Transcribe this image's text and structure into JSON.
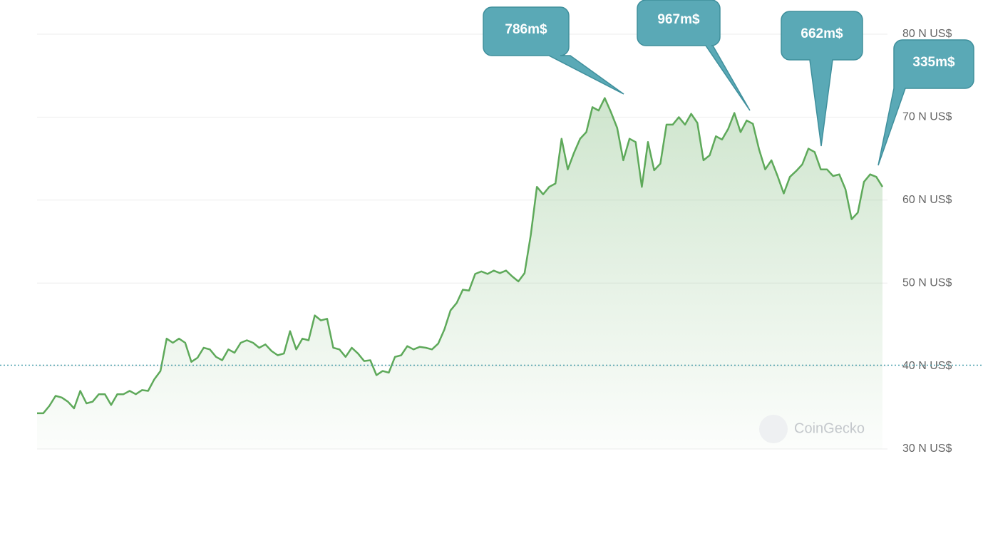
{
  "chart_data": {
    "type": "line",
    "values": [
      34.3,
      34.3,
      35.2,
      36.4,
      36.2,
      35.7,
      34.9,
      37.0,
      35.5,
      35.7,
      36.6,
      36.6,
      35.3,
      36.6,
      36.6,
      37.0,
      36.6,
      37.1,
      37.0,
      38.4,
      39.4,
      43.3,
      42.8,
      43.3,
      42.8,
      40.5,
      41.0,
      42.2,
      42.0,
      41.1,
      40.7,
      42.0,
      41.6,
      42.8,
      43.1,
      42.8,
      42.2,
      42.6,
      41.8,
      41.3,
      41.5,
      44.2,
      42.0,
      43.3,
      43.1,
      46.1,
      45.5,
      45.7,
      42.2,
      42.0,
      41.1,
      42.2,
      41.5,
      40.6,
      40.7,
      38.9,
      39.4,
      39.2,
      41.1,
      41.3,
      42.4,
      42.0,
      42.3,
      42.2,
      42.0,
      42.7,
      44.4,
      46.7,
      47.6,
      49.2,
      49.1,
      51.1,
      51.4,
      51.1,
      51.5,
      51.2,
      51.5,
      50.8,
      50.2,
      51.2,
      55.8,
      61.6,
      60.7,
      61.6,
      62.0,
      67.4,
      63.7,
      65.7,
      67.4,
      68.2,
      71.2,
      70.8,
      72.3,
      70.6,
      68.7,
      64.8,
      67.4,
      67.0,
      61.6,
      67.0,
      63.6,
      64.4,
      69.1,
      69.1,
      70.0,
      69.1,
      70.4,
      69.3,
      64.8,
      65.4,
      67.7,
      67.3,
      68.6,
      70.5,
      68.2,
      69.6,
      69.2,
      66.1,
      63.7,
      64.8,
      62.9,
      60.8,
      62.8,
      63.5,
      64.3,
      66.2,
      65.8,
      63.7,
      63.7,
      62.9,
      63.1,
      61.3,
      57.7,
      58.5,
      62.2,
      63.1,
      62.8,
      61.6
    ],
    "color": "#5ea95a",
    "ylim": [
      30,
      80
    ],
    "yticks": [
      {
        "value": 30,
        "label": "30 N US$"
      },
      {
        "value": 40,
        "label": "40 N US$"
      },
      {
        "value": 50,
        "label": "50 N US$"
      },
      {
        "value": 60,
        "label": "60 N US$"
      },
      {
        "value": 70,
        "label": "70 N US$"
      },
      {
        "value": 80,
        "label": "80 N US$"
      }
    ],
    "grid": true,
    "reference_line": 40.1,
    "annotations": [
      "786m$",
      "967m$",
      "662m$",
      "335m$"
    ],
    "watermark": "CoinGecko"
  }
}
